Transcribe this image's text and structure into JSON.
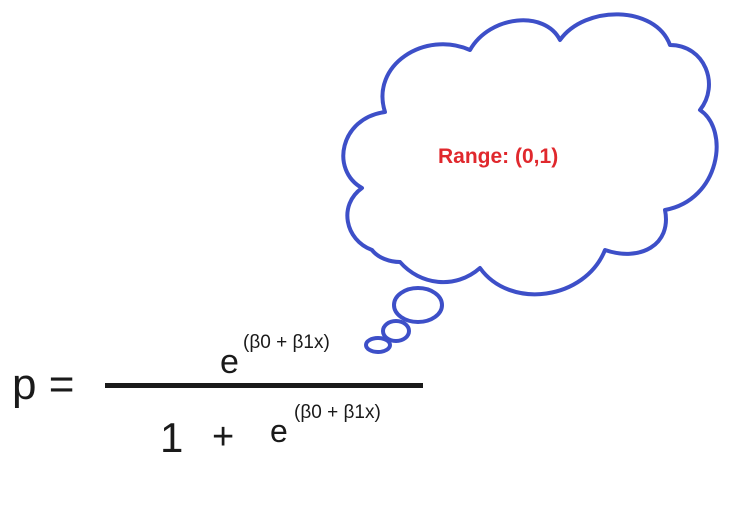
{
  "colors": {
    "cloud_stroke": "#3d4fc8",
    "annotation_text": "#e0282d",
    "formula_text": "#1a1a1a"
  },
  "formula": {
    "lhs": "p =",
    "numerator_base": "e",
    "numerator_exponent": "(β0 + β1x)",
    "denominator_one": "1",
    "denominator_plus": "+",
    "denominator_base": "e",
    "denominator_exponent": "(β0 + β1x)"
  },
  "thought_bubble": {
    "text": "Range: (0,1)"
  }
}
